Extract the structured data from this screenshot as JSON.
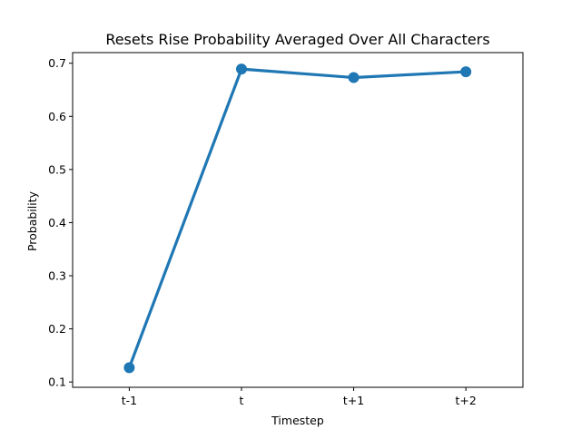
{
  "chart_data": {
    "type": "line",
    "title": "Resets Rise Probability Averaged Over All Characters",
    "xlabel": "Timestep",
    "ylabel": "Probability",
    "categories": [
      "t-1",
      "t",
      "t+1",
      "t+2"
    ],
    "series": [
      {
        "values": [
          0.127,
          0.689,
          0.673,
          0.684
        ]
      }
    ],
    "ylim": [
      0.09,
      0.72
    ],
    "yticks": [
      0.1,
      0.2,
      0.3,
      0.4,
      0.5,
      0.6,
      0.7
    ],
    "ytick_labels": [
      "0.1",
      "0.2",
      "0.3",
      "0.4",
      "0.5",
      "0.6",
      "0.7"
    ],
    "grid": false,
    "legend": "none",
    "colors": {
      "series": "#1f77b4",
      "axes": "#000000",
      "background": "#ffffff"
    }
  }
}
